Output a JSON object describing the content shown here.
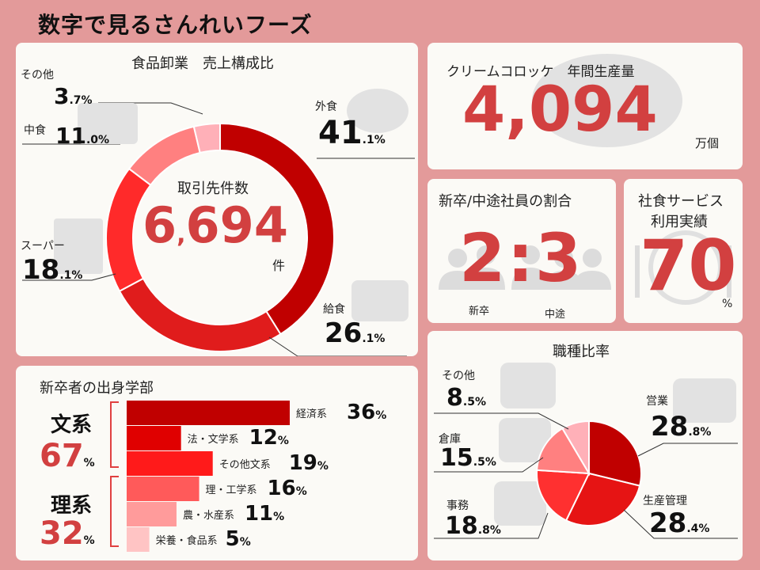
{
  "page_title": "数字で見るさんれいフーズ",
  "colors": {
    "background": "#e39a9a",
    "panel": "#fbfaf6",
    "accent_red": "#d24040"
  },
  "sales": {
    "title": "食品卸業　売上構成比",
    "center_label": "取引先件数",
    "center_value_main": "6",
    "center_value_sep": ",",
    "center_value_rest": "694",
    "center_unit": "件",
    "items": [
      {
        "label": "外食",
        "int": "41",
        "dec": ".1",
        "unit": "%"
      },
      {
        "label": "給食",
        "int": "26",
        "dec": ".1",
        "unit": "%"
      },
      {
        "label": "スーパー",
        "int": "18",
        "dec": ".1",
        "unit": "%"
      },
      {
        "label": "中食",
        "int": "11",
        "dec": ".0",
        "unit": "%"
      },
      {
        "label": "その他",
        "int": "3",
        "dec": ".7",
        "unit": "%"
      }
    ]
  },
  "croquette": {
    "title": "クリームコロッケ　年間生産量",
    "value": "4,094",
    "unit": "万個"
  },
  "ratio": {
    "title": "新卒/中途社員の割合",
    "value": "2:3",
    "left_label": "新卒",
    "right_label": "中途"
  },
  "cafeteria": {
    "title_line1": "社食サービス",
    "title_line2": "利用実績",
    "value": "70",
    "unit": "%"
  },
  "education": {
    "title": "新卒者の出身学部",
    "humanities_label": "文系",
    "humanities_value": "67",
    "science_label": "理系",
    "science_value": "32",
    "unit": "%",
    "bars": [
      {
        "label": "経済系",
        "value": "36"
      },
      {
        "label": "法・文学系",
        "value": "12"
      },
      {
        "label": "その他文系",
        "value": "19"
      },
      {
        "label": "理・工学系",
        "value": "16"
      },
      {
        "label": "農・水産系",
        "value": "11"
      },
      {
        "label": "栄養・食品系",
        "value": "5"
      }
    ]
  },
  "jobs": {
    "title": "職種比率",
    "items": [
      {
        "label": "営業",
        "int": "28",
        "dec": ".8",
        "unit": "%"
      },
      {
        "label": "生産管理",
        "int": "28",
        "dec": ".4",
        "unit": "%"
      },
      {
        "label": "事務",
        "int": "18",
        "dec": ".8",
        "unit": "%"
      },
      {
        "label": "倉庫",
        "int": "15",
        "dec": ".5",
        "unit": "%"
      },
      {
        "label": "その他",
        "int": "8",
        "dec": ".5",
        "unit": "%"
      }
    ]
  },
  "chart_data": [
    {
      "type": "pie",
      "title": "食品卸業　売上構成比",
      "categories": [
        "外食",
        "給食",
        "スーパー",
        "中食",
        "その他"
      ],
      "values": [
        41.1,
        26.1,
        18.1,
        11.0,
        3.7
      ],
      "colors": [
        "#c00000",
        "#e01c1c",
        "#ff2a2a",
        "#ff8080",
        "#ffb0b8"
      ]
    },
    {
      "type": "bar",
      "title": "新卒者の出身学部",
      "categories": [
        "経済系",
        "法・文学系",
        "その他文系",
        "理・工学系",
        "農・水産系",
        "栄養・食品系"
      ],
      "values": [
        36,
        12,
        19,
        16,
        11,
        5
      ],
      "colors": [
        "#c00000",
        "#e00000",
        "#ff1a1a",
        "#ff5a5a",
        "#ff9b9b",
        "#ffc4c4"
      ]
    },
    {
      "type": "pie",
      "title": "職種比率",
      "categories": [
        "営業",
        "生産管理",
        "事務",
        "倉庫",
        "その他"
      ],
      "values": [
        28.8,
        28.4,
        18.8,
        15.5,
        8.5
      ],
      "colors": [
        "#c00000",
        "#e61414",
        "#ff3030",
        "#ff8080",
        "#ffb0b8"
      ]
    }
  ]
}
